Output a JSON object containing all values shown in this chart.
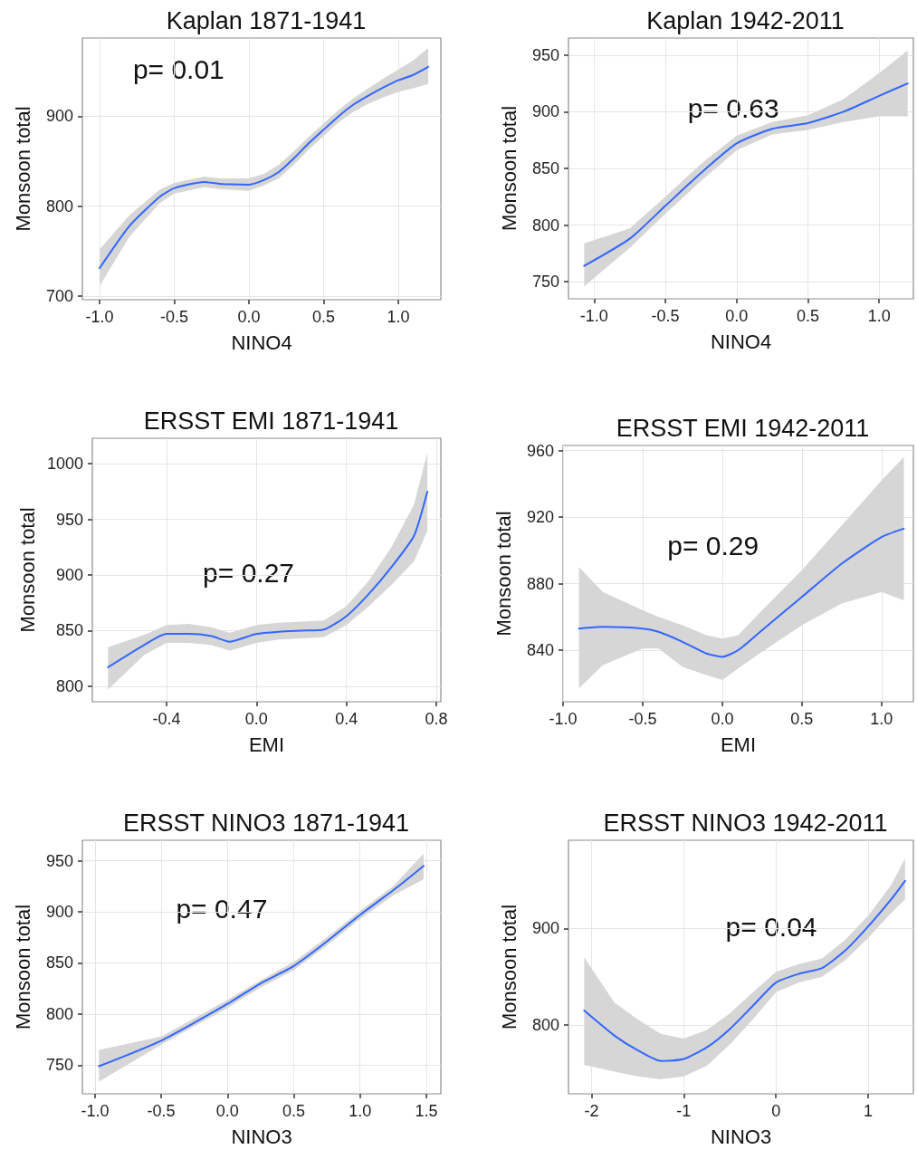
{
  "chart_data": [
    {
      "type": "line",
      "title": "Kaplan 1871-1941",
      "xlabel": "NINO4",
      "ylabel": "Monsoon total",
      "annotations": [
        "p= 0.01"
      ],
      "marker": "none",
      "grid": true,
      "x": [
        -1.0,
        -0.8,
        -0.6,
        -0.5,
        -0.3,
        -0.2,
        0.0,
        0.1,
        0.2,
        0.3,
        0.4,
        0.5,
        0.6,
        0.7,
        0.8,
        0.9,
        1.0,
        1.1,
        1.2
      ],
      "series": [
        {
          "color": "#3366ff",
          "values": [
            731,
            778,
            810,
            820,
            827,
            825,
            824,
            829,
            838,
            853,
            870,
            885,
            900,
            913,
            923,
            932,
            940,
            946,
            955
          ],
          "lower": [
            711,
            766,
            803,
            814,
            821,
            819,
            817,
            823,
            831,
            846,
            863,
            878,
            893,
            905,
            914,
            921,
            927,
            931,
            936
          ],
          "upper": [
            752,
            790,
            818,
            826,
            833,
            831,
            831,
            836,
            846,
            861,
            877,
            892,
            907,
            920,
            931,
            942,
            952,
            962,
            976
          ]
        }
      ],
      "xlim": [
        -1.115,
        1.285
      ],
      "ylim": [
        696,
        987
      ],
      "xticks": [
        {
          "value": -1,
          "label": "-1.0"
        },
        {
          "value": -0.5,
          "label": "-0.5"
        },
        {
          "value": 0,
          "label": "0.0"
        },
        {
          "value": 0.5,
          "label": "0.5"
        },
        {
          "value": 1,
          "label": "1.0"
        }
      ],
      "yticks": [
        700,
        800,
        900
      ]
    },
    {
      "type": "line",
      "title": "Kaplan 1942-2011",
      "xlabel": "NINO4",
      "ylabel": "Monsoon total",
      "annotations": [
        "p= 0.63"
      ],
      "marker": "none",
      "grid": true,
      "x": [
        -1.07,
        -0.75,
        -0.5,
        -0.25,
        0.0,
        0.25,
        0.5,
        0.75,
        1.0,
        1.2
      ],
      "series": [
        {
          "color": "#3366ff",
          "values": [
            764,
            788,
            817,
            846,
            872,
            885,
            890,
            900,
            914,
            925
          ],
          "lower": [
            746,
            780,
            810,
            839,
            866,
            880,
            884,
            891,
            896,
            896
          ],
          "upper": [
            784,
            797,
            825,
            854,
            879,
            891,
            897,
            911,
            934,
            954
          ]
        }
      ],
      "xlim": [
        -1.18,
        1.24
      ],
      "ylim": [
        735,
        965
      ],
      "xticks": [
        {
          "value": -1,
          "label": "-1.0"
        },
        {
          "value": -0.5,
          "label": "-0.5"
        },
        {
          "value": 0,
          "label": "0.0"
        },
        {
          "value": 0.5,
          "label": "0.5"
        },
        {
          "value": 1,
          "label": "1.0"
        }
      ],
      "yticks": [
        750,
        800,
        850,
        900,
        950
      ]
    },
    {
      "type": "line",
      "title": "ERSST EMI 1871-1941",
      "xlabel": "EMI",
      "ylabel": "Monsoon total",
      "annotations": [
        "p= 0.27"
      ],
      "marker": "none",
      "grid": true,
      "x": [
        -0.66,
        -0.5,
        -0.4,
        -0.3,
        -0.2,
        -0.12,
        0.0,
        0.1,
        0.2,
        0.3,
        0.4,
        0.5,
        0.6,
        0.7,
        0.76
      ],
      "series": [
        {
          "color": "#3366ff",
          "values": [
            817,
            837,
            847,
            847,
            845,
            840,
            847,
            849,
            850,
            851,
            863,
            883,
            907,
            935,
            975
          ],
          "lower": [
            797,
            828,
            839,
            839,
            837,
            832,
            839,
            842,
            843,
            844,
            855,
            872,
            891,
            912,
            940
          ],
          "upper": [
            835,
            846,
            855,
            856,
            853,
            848,
            855,
            857,
            858,
            859,
            872,
            895,
            925,
            963,
            1010
          ]
        }
      ],
      "xlim": [
        -0.73,
        0.82
      ],
      "ylim": [
        786,
        1023
      ],
      "xticks": [
        {
          "value": -0.4,
          "label": "-0.4"
        },
        {
          "value": 0,
          "label": "0.0"
        },
        {
          "value": 0.4,
          "label": "0.4"
        },
        {
          "value": 0.8,
          "label": "0.8"
        }
      ],
      "yticks": [
        800,
        850,
        900,
        950,
        1000
      ]
    },
    {
      "type": "line",
      "title": "ERSST EMI 1942-2011",
      "xlabel": "EMI",
      "ylabel": "Monsoon total",
      "annotations": [
        "p= 0.29"
      ],
      "marker": "none",
      "grid": true,
      "x": [
        -0.9,
        -0.75,
        -0.5,
        -0.4,
        -0.25,
        -0.1,
        0.0,
        0.1,
        0.25,
        0.5,
        0.75,
        1.0,
        1.14
      ],
      "series": [
        {
          "color": "#3366ff",
          "values": [
            853,
            854,
            853,
            851,
            845,
            838,
            836,
            840,
            852,
            872,
            892,
            908,
            913
          ],
          "lower": [
            817,
            831,
            841,
            841,
            830,
            825,
            822,
            829,
            839,
            855,
            868,
            875,
            870
          ],
          "upper": [
            890,
            875,
            864,
            860,
            855,
            849,
            847,
            849,
            864,
            888,
            915,
            942,
            956
          ]
        }
      ],
      "xlim": [
        -1.0,
        1.2
      ],
      "ylim": [
        809,
        963
      ],
      "xticks": [
        {
          "value": -1,
          "label": "-1.0"
        },
        {
          "value": -0.5,
          "label": "-0.5"
        },
        {
          "value": 0,
          "label": "0.0"
        },
        {
          "value": 0.5,
          "label": "0.5"
        },
        {
          "value": 1,
          "label": "1.0"
        }
      ],
      "yticks": [
        840,
        880,
        920,
        960
      ]
    },
    {
      "type": "line",
      "title": "ERSST NINO3 1871-1941",
      "xlabel": "NINO3",
      "ylabel": "Monsoon total",
      "annotations": [
        "p= 0.47"
      ],
      "marker": "none",
      "grid": true,
      "x": [
        -0.97,
        -0.5,
        0.0,
        0.25,
        0.5,
        0.75,
        1.0,
        1.25,
        1.48
      ],
      "series": [
        {
          "color": "#3366ff",
          "values": [
            749,
            774,
            810,
            830,
            847,
            871,
            897,
            921,
            945
          ],
          "lower": [
            734,
            770,
            806,
            826,
            843,
            867,
            893,
            916,
            932
          ],
          "upper": [
            765,
            778,
            814,
            833,
            851,
            875,
            901,
            925,
            957
          ]
        }
      ],
      "xlim": [
        -1.095,
        1.61
      ],
      "ylim": [
        722,
        970
      ],
      "xticks": [
        {
          "value": -1,
          "label": "-1.0"
        },
        {
          "value": -0.5,
          "label": "-0.5"
        },
        {
          "value": 0,
          "label": "0.0"
        },
        {
          "value": 0.5,
          "label": "0.5"
        },
        {
          "value": 1,
          "label": "1.0"
        },
        {
          "value": 1.5,
          "label": "1.5"
        }
      ],
      "yticks": [
        750,
        800,
        850,
        900,
        950
      ]
    },
    {
      "type": "line",
      "title": "ERSST NINO3 1942-2011",
      "xlabel": "NINO3",
      "ylabel": "Monsoon total",
      "annotations": [
        "p= 0.04"
      ],
      "marker": "none",
      "grid": true,
      "x": [
        -2.08,
        -1.75,
        -1.5,
        -1.25,
        -1.0,
        -0.75,
        -0.5,
        -0.25,
        0.0,
        0.25,
        0.5,
        0.75,
        1.0,
        1.25,
        1.4
      ],
      "series": [
        {
          "color": "#3366ff",
          "values": [
            815,
            789,
            774,
            763,
            765,
            777,
            796,
            820,
            844,
            853,
            859,
            877,
            902,
            930,
            949
          ],
          "lower": [
            759,
            752,
            747,
            744,
            747,
            758,
            780,
            806,
            834,
            844,
            850,
            867,
            890,
            916,
            930
          ],
          "upper": [
            870,
            823,
            806,
            791,
            786,
            795,
            812,
            834,
            855,
            863,
            869,
            888,
            913,
            945,
            972
          ]
        }
      ],
      "xlim": [
        -2.25,
        1.49
      ],
      "ylim": [
        729,
        991
      ],
      "xticks": [
        -2,
        -1,
        0,
        1
      ],
      "yticks": [
        800,
        900
      ]
    }
  ]
}
